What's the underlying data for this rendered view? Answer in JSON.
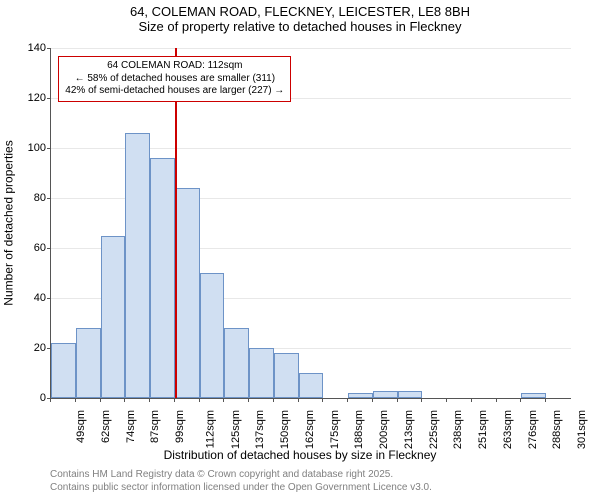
{
  "title": {
    "line1": "64, COLEMAN ROAD, FLECKNEY, LEICESTER, LE8 8BH",
    "line2": "Size of property relative to detached houses in Fleckney"
  },
  "axes": {
    "ylabel": "Number of detached properties",
    "xlabel": "Distribution of detached houses by size in Fleckney",
    "ylim_max": 140,
    "ytick_step": 20,
    "yticks": [
      0,
      20,
      40,
      60,
      80,
      100,
      120,
      140
    ],
    "grid_color": "#e8e8e8",
    "axis_color": "#555555"
  },
  "histogram": {
    "type": "histogram",
    "bar_fill": "#d0dff2",
    "bar_border": "#6d93c7",
    "background_color": "#ffffff",
    "categories": [
      "49sqm",
      "62sqm",
      "74sqm",
      "87sqm",
      "99sqm",
      "112sqm",
      "125sqm",
      "137sqm",
      "150sqm",
      "162sqm",
      "175sqm",
      "188sqm",
      "200sqm",
      "213sqm",
      "225sqm",
      "238sqm",
      "251sqm",
      "263sqm",
      "276sqm",
      "288sqm",
      "301sqm"
    ],
    "values": [
      22,
      28,
      65,
      106,
      96,
      84,
      50,
      28,
      20,
      18,
      10,
      0,
      2,
      3,
      3,
      0,
      0,
      0,
      0,
      2,
      0
    ]
  },
  "marker": {
    "position_category_index": 5,
    "line_color": "#cc0000",
    "line_width": 2,
    "box_border": "#cc0000",
    "box_bg": "#ffffff",
    "line1": "64 COLEMAN ROAD: 112sqm",
    "line2": "← 58% of detached houses are smaller (311)",
    "line3": "42% of semi-detached houses are larger (227) →"
  },
  "footer": {
    "line1": "Contains HM Land Registry data © Crown copyright and database right 2025.",
    "line2": "Contains public sector information licensed under the Open Government Licence v3.0."
  },
  "typography": {
    "title_fontsize": 13,
    "axis_label_fontsize": 12,
    "tick_fontsize": 11,
    "annotation_fontsize": 10,
    "footer_fontsize": 10,
    "footer_color": "#808080"
  }
}
